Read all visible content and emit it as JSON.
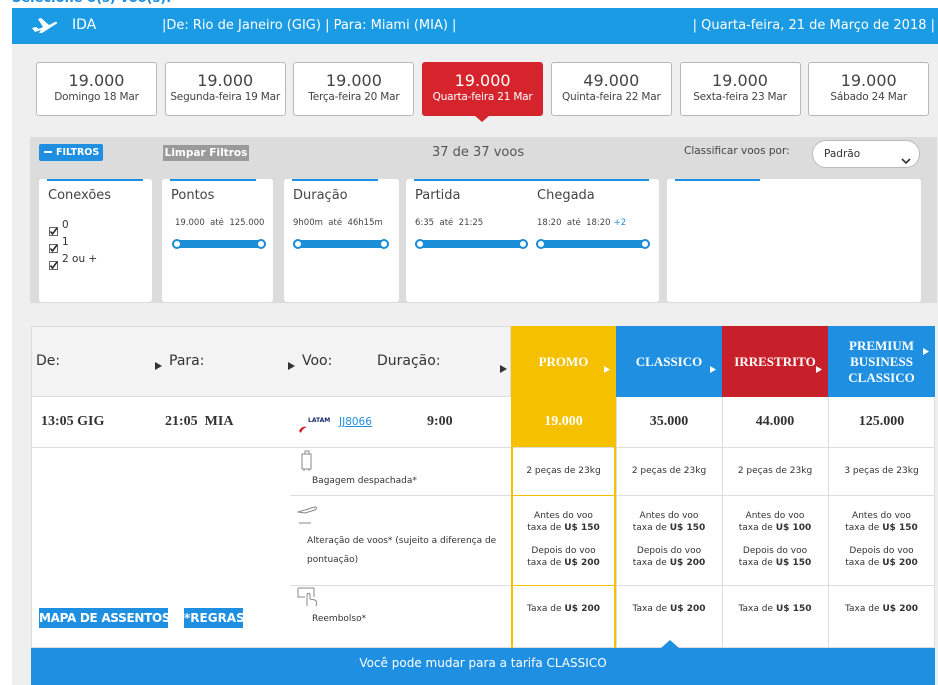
{
  "header": {
    "heading": "Selecione o(s) voo(s):",
    "direction": "IDA",
    "route": "|De: Rio de Janeiro (GIG) | Para: Miami (MIA) |",
    "date": "| Quarta-feira, 21 de Março de 2018 |"
  },
  "dates": [
    {
      "points": "19.000",
      "label": "Domingo 18 Mar"
    },
    {
      "points": "19.000",
      "label": "Segunda-feira 19 Mar"
    },
    {
      "points": "19.000",
      "label": "Terça-feira 20 Mar"
    },
    {
      "points": "19.000",
      "label": "Quarta-feira 21 Mar",
      "selected": true
    },
    {
      "points": "49.000",
      "label": "Quinta-feira 22 Mar"
    },
    {
      "points": "19.000",
      "label": "Sexta-feira 23 Mar"
    },
    {
      "points": "19.000",
      "label": "Sábado 24 Mar"
    }
  ],
  "filters": {
    "toggle": "FILTROS",
    "clear": "Limpar Filtros",
    "count": "37 de 37 voos",
    "sort_label": "Classificar voos por:",
    "sort_value": "Padrão",
    "connections": {
      "title": "Conexões",
      "options": [
        "0",
        "1",
        "2 ou +"
      ]
    },
    "points": {
      "title": "Pontos",
      "range": "19.000  até  125.000"
    },
    "duration": {
      "title": "Duração",
      "range": "9h00m  até  46h15m"
    },
    "departure": {
      "title": "Partida",
      "range": "6:35  até  21:25"
    },
    "arrival": {
      "title": "Chegada",
      "range": "18:20  até  18:20",
      "extra": "+2"
    }
  },
  "table": {
    "columns": {
      "from": "De:",
      "to": "Para:",
      "flight": "Voo:",
      "duration": "Duração:"
    },
    "flight": {
      "departure": "13:05 GIG",
      "arrival": "21:05  MIA",
      "airline": "LATAM",
      "number": "JJ8066",
      "duration": "9:00"
    },
    "services": {
      "baggage": "Bagagem despachada*",
      "change": "Alteração de voos* (sujeito a diferença de pontuação)",
      "refund": "Reembolso*"
    },
    "before": "Antes do voo",
    "after": "Depois do voo",
    "fee_prefix": "taxa de",
    "refund_prefix": "Taxa de",
    "fares": [
      {
        "name": "PROMO",
        "color": "#f5c000",
        "selected": true,
        "price": "19.000",
        "baggage": "2 peças de 23kg",
        "fee_before": "U$ 150",
        "fee_after": "U$ 200",
        "refund_fee": "U$ 200"
      },
      {
        "name": "CLASSICO",
        "color": "#1e8fe1",
        "price": "35.000",
        "baggage": "2 peças de 23kg",
        "fee_before": "U$ 150",
        "fee_after": "U$ 200",
        "refund_fee": "U$ 200"
      },
      {
        "name": "IRRESTRITO",
        "color": "#c8202a",
        "price": "44.000",
        "baggage": "2 peças de 23kg",
        "fee_before": "U$ 100",
        "fee_after": "U$ 150",
        "refund_fee": "U$ 150"
      },
      {
        "name": "PREMIUM BUSINESS CLASSICO",
        "color": "#1e8fe1",
        "price": "125.000",
        "baggage": "3 peças de 23kg",
        "fee_before": "U$ 150",
        "fee_after": "U$ 200",
        "refund_fee": "U$ 200"
      }
    ],
    "seat_map": "MAPA DE ASSENTOS",
    "rules": "*REGRAS",
    "footer": "Você pode mudar para a tarifa CLASSICO"
  }
}
